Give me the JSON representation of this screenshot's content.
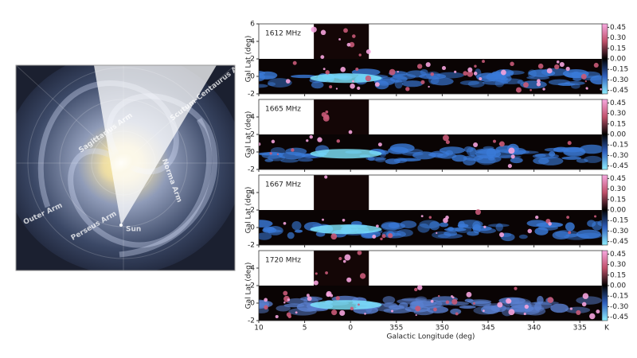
{
  "illustration": {
    "labels": [
      "Scutum-Centaurus Arm",
      "Norma Arm",
      "Sagittarius Arm",
      "Perseus Arm",
      "Outer Arm",
      "Sun"
    ]
  },
  "chart_data": [
    {
      "type": "heatmap",
      "title": "1612 MHz",
      "ylabel": "Gal Lat (deg)",
      "xlim": [
        10,
        -27.5
      ],
      "ylim": [
        -2,
        6
      ],
      "yticks": [
        -2,
        0,
        2,
        4,
        6
      ],
      "colorbar": {
        "lim": [
          -0.5,
          0.5
        ],
        "ticks": [
          0.45,
          {
            "value": 0.3,
            "label": "0.30"
          },
          0.15,
          {
            "value": 0,
            "label": "0.00"
          },
          -0.15,
          {
            "value": -0.3,
            "label": "-0.30"
          },
          -0.45
        ]
      }
    },
    {
      "type": "heatmap",
      "title": "1665 MHz",
      "ylabel": "Gal Lat (deg)",
      "xlim": [
        10,
        -27.5
      ],
      "ylim": [
        -2,
        6
      ],
      "yticks": [
        -2,
        0,
        2,
        4
      ],
      "colorbar": {
        "lim": [
          -0.5,
          0.5
        ],
        "ticks": [
          0.45,
          {
            "value": 0.3,
            "label": "0.30"
          },
          0.15,
          {
            "value": 0,
            "label": "0.00"
          },
          -0.15,
          {
            "value": -0.3,
            "label": "-0.30"
          },
          -0.45
        ]
      }
    },
    {
      "type": "heatmap",
      "title": "1667 MHz",
      "ylabel": "Gal Lat (deg)",
      "xlim": [
        10,
        -27.5
      ],
      "ylim": [
        -2,
        6
      ],
      "yticks": [
        -2,
        0,
        2,
        4
      ],
      "colorbar": {
        "lim": [
          -0.5,
          0.5
        ],
        "ticks": [
          0.45,
          {
            "value": 0.3,
            "label": "0.30"
          },
          0.15,
          {
            "value": 0,
            "label": "0.00"
          },
          -0.15,
          {
            "value": -0.3,
            "label": "-0.30"
          },
          -0.45
        ]
      }
    },
    {
      "type": "heatmap",
      "title": "1720 MHz",
      "ylabel": "Gal Lat (deg)",
      "xlabel": "Galactic Longitude (deg)",
      "xlim": [
        10,
        -27.5
      ],
      "ylim": [
        -2,
        6
      ],
      "yticks": [
        -2,
        0,
        2,
        4
      ],
      "xticks": [
        10,
        5,
        0,
        {
          "value": -5,
          "label": "355"
        },
        {
          "value": -10,
          "label": "350"
        },
        {
          "value": -15,
          "label": "345"
        },
        {
          "value": -20,
          "label": "340"
        },
        {
          "value": -25,
          "label": "335"
        }
      ],
      "colorbar": {
        "lim": [
          -0.5,
          0.5
        ],
        "unit": "K",
        "ticks": [
          0.45,
          {
            "value": 0.3,
            "label": "0.30"
          },
          0.15,
          {
            "value": 0,
            "label": "0.00"
          },
          -0.15,
          {
            "value": -0.3,
            "label": "-0.30"
          },
          -0.45
        ]
      }
    }
  ]
}
